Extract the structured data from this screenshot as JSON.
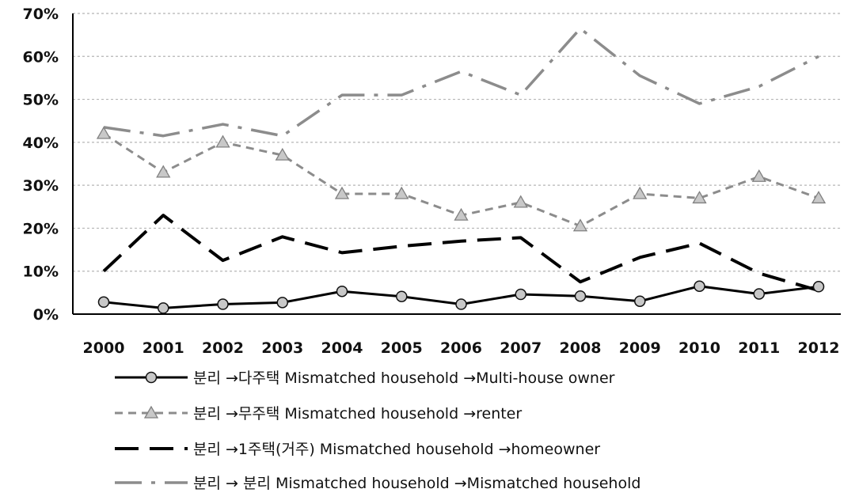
{
  "chart_data": {
    "type": "line",
    "title": "",
    "xlabel": "",
    "ylabel": "",
    "x": [
      "2000",
      "2001",
      "2002",
      "2003",
      "2004",
      "2005",
      "2006",
      "2007",
      "2008",
      "2009",
      "2010",
      "2011",
      "2012"
    ],
    "ylim": [
      0,
      70
    ],
    "yticks": [
      0,
      10,
      20,
      30,
      40,
      50,
      60,
      70
    ],
    "ytick_labels": [
      "0%",
      "10%",
      "20%",
      "30%",
      "40%",
      "50%",
      "60%",
      "70%"
    ],
    "grid": true,
    "legend_position": "bottom",
    "series": [
      {
        "name": "분리 →다주택 Mismatched household →Multi-house owner",
        "values": [
          2.8,
          1.4,
          2.3,
          2.7,
          5.3,
          4.1,
          2.3,
          4.6,
          4.2,
          3.0,
          6.5,
          4.7,
          6.4
        ],
        "color": "#000000",
        "dash": "solid",
        "marker": "circle"
      },
      {
        "name": "분리 →무주택 Mismatched household →renter",
        "values": [
          42,
          33,
          40,
          37,
          28,
          28,
          23,
          26,
          20.5,
          28,
          27,
          32,
          27
        ],
        "color": "#8c8c8c",
        "dash": "dashed",
        "marker": "triangle"
      },
      {
        "name": "분리 →1주택(거주) Mismatched household →homeowner",
        "values": [
          10,
          23,
          12.5,
          18,
          14.3,
          15.8,
          17,
          17.8,
          7.5,
          13.2,
          16.5,
          9.5,
          5.5
        ],
        "color": "#000000",
        "dash": "longdash",
        "marker": "none"
      },
      {
        "name": "분리 → 분리 Mismatched household →Mismatched household",
        "values": [
          43.5,
          41.5,
          44.2,
          41.5,
          51,
          51,
          56.5,
          51,
          66.5,
          55.5,
          49,
          53,
          60
        ],
        "color": "#8c8c8c",
        "dash": "dashdot",
        "marker": "none"
      }
    ]
  }
}
